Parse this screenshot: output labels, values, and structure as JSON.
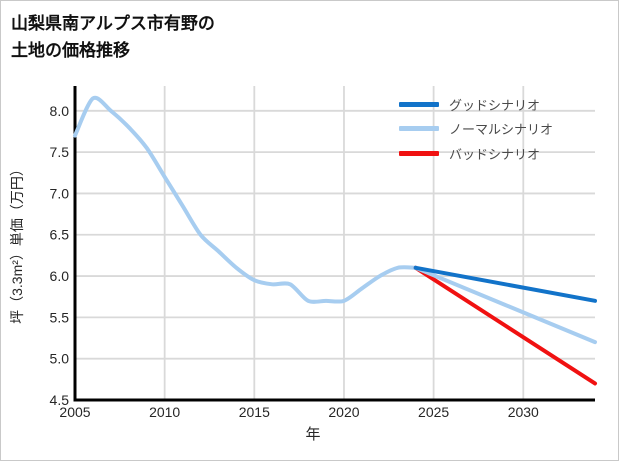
{
  "page": {
    "title_line1": "山梨県南アルプス市有野の",
    "title_line2": "土地の価格推移"
  },
  "chart_data": {
    "type": "line",
    "title": "山梨県南アルプス市有野の土地の価格推移",
    "xlabel": "年",
    "ylabel": "坪（3.3m²）単価（万円）",
    "xlim": [
      2005,
      2034
    ],
    "ylim": [
      4.5,
      8.3
    ],
    "x_ticks": [
      2005,
      2010,
      2015,
      2020,
      2025,
      2030
    ],
    "y_ticks": [
      4.5,
      5.0,
      5.5,
      6.0,
      6.5,
      7.0,
      7.5,
      8.0
    ],
    "grid": true,
    "legend_position": "upper-right",
    "colors": {
      "grid": "#d9d9d9",
      "axis": "#000000",
      "tick_text": "#262626",
      "legend_text": "#4a4a4a"
    },
    "history_line": {
      "color": "#a7cdf0",
      "x": [
        2005,
        2006,
        2007,
        2008,
        2009,
        2010,
        2011,
        2012,
        2013,
        2014,
        2015,
        2016,
        2017,
        2018,
        2019,
        2020,
        2021,
        2022,
        2023,
        2024
      ],
      "values": [
        7.7,
        8.15,
        8.0,
        7.8,
        7.55,
        7.2,
        6.85,
        6.5,
        6.3,
        6.1,
        5.95,
        5.9,
        5.9,
        5.7,
        5.7,
        5.7,
        5.85,
        6.0,
        6.1,
        6.1
      ]
    },
    "series": [
      {
        "id": "good",
        "name": "グッドシナリオ",
        "color": "#1273c9",
        "x": [
          2024,
          2034
        ],
        "values": [
          6.1,
          5.7
        ]
      },
      {
        "id": "normal",
        "name": "ノーマルシナリオ",
        "color": "#a7cdf0",
        "x": [
          2024,
          2034
        ],
        "values": [
          6.1,
          5.2
        ]
      },
      {
        "id": "bad",
        "name": "バッドシナリオ",
        "color": "#f01111",
        "x": [
          2024,
          2034
        ],
        "values": [
          6.1,
          4.7
        ]
      }
    ]
  }
}
